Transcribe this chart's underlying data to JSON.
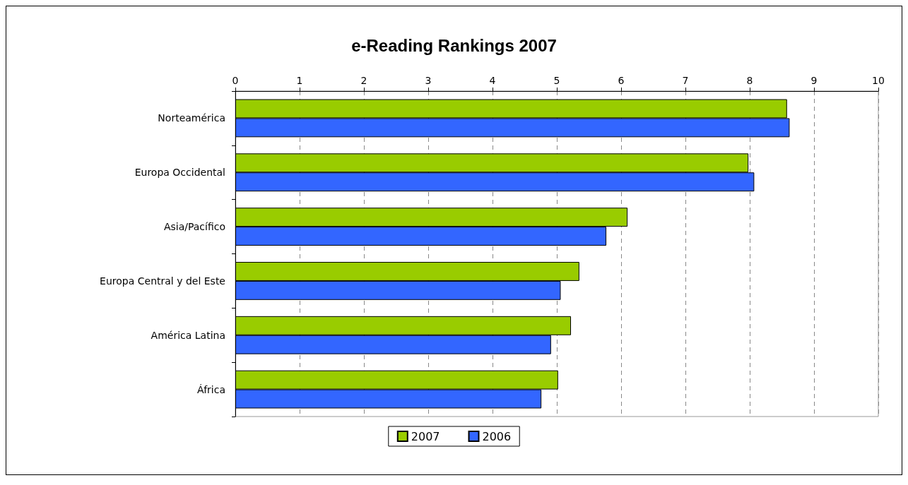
{
  "chart_data": {
    "type": "bar",
    "orientation": "horizontal",
    "title": "e-Reading Rankings 2007",
    "categories": [
      "Norteamérica",
      "Europa Occidental",
      "Asia/Pacífico",
      "Europa Central y del Este",
      "América Latina",
      "África"
    ],
    "series": [
      {
        "name": "2007",
        "color": "#99cc00",
        "values": [
          8.58,
          7.98,
          6.1,
          5.35,
          5.22,
          5.02
        ]
      },
      {
        "name": "2006",
        "color": "#3366ff",
        "values": [
          8.62,
          8.07,
          5.77,
          5.06,
          4.91,
          4.76
        ]
      }
    ],
    "xlim": [
      0,
      10
    ],
    "xticks": [
      0,
      1,
      2,
      3,
      4,
      5,
      6,
      7,
      8,
      9,
      10
    ],
    "grid": "x",
    "legend": "bottom"
  }
}
